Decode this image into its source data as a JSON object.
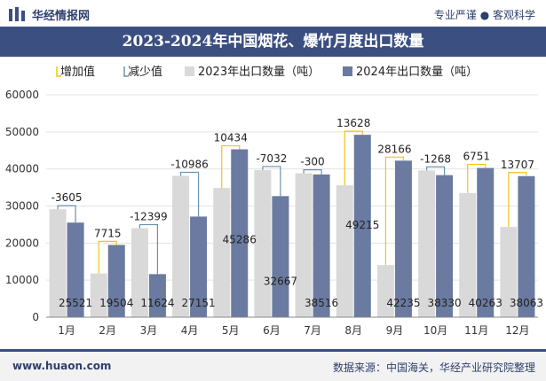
{
  "header": {
    "brand": "华经情报网",
    "slogan": "专业严谨 ● 客观科学"
  },
  "title": "2023-2024年中国烟花、爆竹月度出口数量",
  "footer": {
    "url": "www.huaon.com",
    "source": "数据来源：中国海关，华经产业研究院整理"
  },
  "colors": {
    "y2023": "#d9d9d9",
    "y2024": "#6a7aa0",
    "increase": "#f2c318",
    "decrease": "#6b93b0",
    "accent": "#3b4f80"
  },
  "chart_data": {
    "type": "bar",
    "title": "2023-2024年中国烟花、爆竹月度出口数量",
    "categories": [
      "1月",
      "2月",
      "3月",
      "4月",
      "5月",
      "6月",
      "7月",
      "8月",
      "9月",
      "10月",
      "11月",
      "12月"
    ],
    "series": [
      {
        "name": "2023年出口数量（吨）",
        "values": [
          29126,
          11789,
          24023,
          38137,
          34852,
          39699,
          38816,
          35587,
          14069,
          39598,
          33512,
          24356
        ]
      },
      {
        "name": "2024年出口数量（吨）",
        "values": [
          25521,
          19504,
          11624,
          27151,
          45286,
          32667,
          38516,
          49215,
          42235,
          38330,
          40263,
          38063
        ]
      }
    ],
    "change": [
      -3605,
      7715,
      -12399,
      -10986,
      10434,
      -7032,
      -300,
      13628,
      28166,
      -1268,
      6751,
      13707
    ],
    "legend": [
      "增加值",
      "减少值",
      "2023年出口数量（吨）",
      "2024年出口数量（吨）"
    ],
    "yticks": [
      "0",
      "10000",
      "20000",
      "30000",
      "40000",
      "50000",
      "60000"
    ],
    "ylim": [
      0,
      60000
    ],
    "legend_position": "top"
  }
}
